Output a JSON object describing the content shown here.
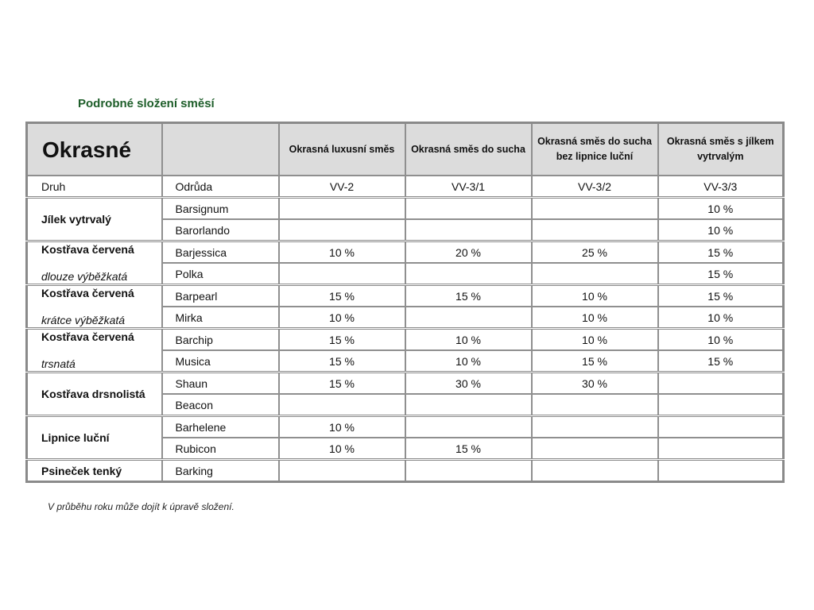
{
  "title": "Podrobné složení směsí",
  "header": {
    "category": "Okrasné",
    "mixes": [
      "Okrasná luxusní směs",
      "Okrasná směs do sucha",
      "Okrasná směs do sucha bez lipnice luční",
      "Okrasná směs s jílkem vytrvalým"
    ]
  },
  "subheader": {
    "druh": "Druh",
    "odruda": "Odrůda",
    "codes": [
      "VV-2",
      "VV-3/1",
      "VV-3/2",
      "VV-3/3"
    ]
  },
  "groups": [
    {
      "name": "Jílek vytrvalý",
      "sub": null,
      "rows": [
        {
          "variety": "Barsignum",
          "values": [
            "",
            "",
            "",
            "10 %"
          ]
        },
        {
          "variety": "Barorlando",
          "values": [
            "",
            "",
            "",
            "10 %"
          ]
        }
      ]
    },
    {
      "name": "Kostřava červená",
      "sub": "dlouze výběžkatá",
      "rows": [
        {
          "variety": "Barjessica",
          "values": [
            "10 %",
            "20 %",
            "25 %",
            "15 %"
          ]
        },
        {
          "variety": "Polka",
          "values": [
            "",
            "",
            "",
            "15 %"
          ]
        }
      ]
    },
    {
      "name": "Kostřava červená",
      "sub": "krátce výběžkatá",
      "rows": [
        {
          "variety": "Barpearl",
          "values": [
            "15 %",
            "15 %",
            "10 %",
            "15 %"
          ]
        },
        {
          "variety": "Mirka",
          "values": [
            "10 %",
            "",
            "10 %",
            "10 %"
          ]
        }
      ]
    },
    {
      "name": "Kostřava červená",
      "sub": "trsnatá",
      "rows": [
        {
          "variety": "Barchip",
          "values": [
            "15 %",
            "10 %",
            "10 %",
            "10 %"
          ]
        },
        {
          "variety": "Musica",
          "values": [
            "15 %",
            "10 %",
            "15 %",
            "15 %"
          ]
        }
      ]
    },
    {
      "name": "Kostřava drsnolistá",
      "sub": null,
      "rows": [
        {
          "variety": "Shaun",
          "values": [
            "15 %",
            "30 %",
            "30 %",
            ""
          ]
        },
        {
          "variety": "Beacon",
          "values": [
            "",
            "",
            "",
            ""
          ]
        }
      ]
    },
    {
      "name": "Lipnice luční",
      "sub": null,
      "rows": [
        {
          "variety": "Barhelene",
          "values": [
            "10 %",
            "",
            "",
            ""
          ]
        },
        {
          "variety": "Rubicon",
          "values": [
            "10 %",
            "15 %",
            "",
            ""
          ]
        }
      ]
    },
    {
      "name": "Psineček tenký",
      "sub": null,
      "rows": [
        {
          "variety": "Barking",
          "values": [
            "",
            "",
            "",
            ""
          ]
        }
      ]
    }
  ],
  "note": "V průběhu roku může dojít k úpravě složení."
}
